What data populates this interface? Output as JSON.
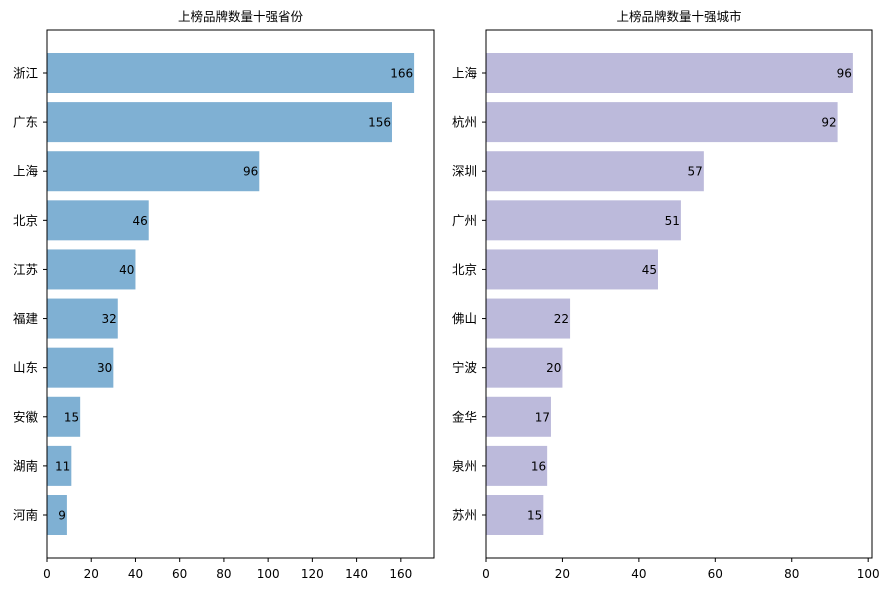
{
  "chart_data": [
    {
      "type": "bar",
      "orientation": "horizontal",
      "title": "上榜品牌数量十强省份",
      "categories": [
        "浙江",
        "广东",
        "上海",
        "北京",
        "江苏",
        "福建",
        "山东",
        "安徽",
        "湖南",
        "河南"
      ],
      "values": [
        166,
        156,
        96,
        46,
        40,
        32,
        30,
        15,
        11,
        9
      ],
      "data_labels": [
        "166",
        "156",
        "96",
        "46",
        "40",
        "32",
        "30",
        "15",
        "11",
        "9"
      ],
      "xlim": [
        0,
        175
      ],
      "x_ticks": [
        0,
        20,
        40,
        60,
        80,
        100,
        120,
        140,
        160
      ],
      "x_tick_labels": [
        "0",
        "20",
        "40",
        "60",
        "80",
        "100",
        "120",
        "140",
        "160"
      ],
      "color": "#7fb0d3",
      "grid": false,
      "legend": "none"
    },
    {
      "type": "bar",
      "orientation": "horizontal",
      "title": "上榜品牌数量十强城市",
      "categories": [
        "上海",
        "杭州",
        "深圳",
        "广州",
        "北京",
        "佛山",
        "宁波",
        "金华",
        "泉州",
        "苏州"
      ],
      "values": [
        96,
        92,
        57,
        51,
        45,
        22,
        20,
        17,
        16,
        15
      ],
      "data_labels": [
        "96",
        "92",
        "57",
        "51",
        "45",
        "22",
        "20",
        "17",
        "16",
        "15"
      ],
      "xlim": [
        0,
        101
      ],
      "x_ticks": [
        0,
        20,
        40,
        60,
        80,
        100
      ],
      "x_tick_labels": [
        "0",
        "20",
        "40",
        "60",
        "80",
        "100"
      ],
      "color": "#bcbadb",
      "grid": false,
      "legend": "none"
    }
  ]
}
